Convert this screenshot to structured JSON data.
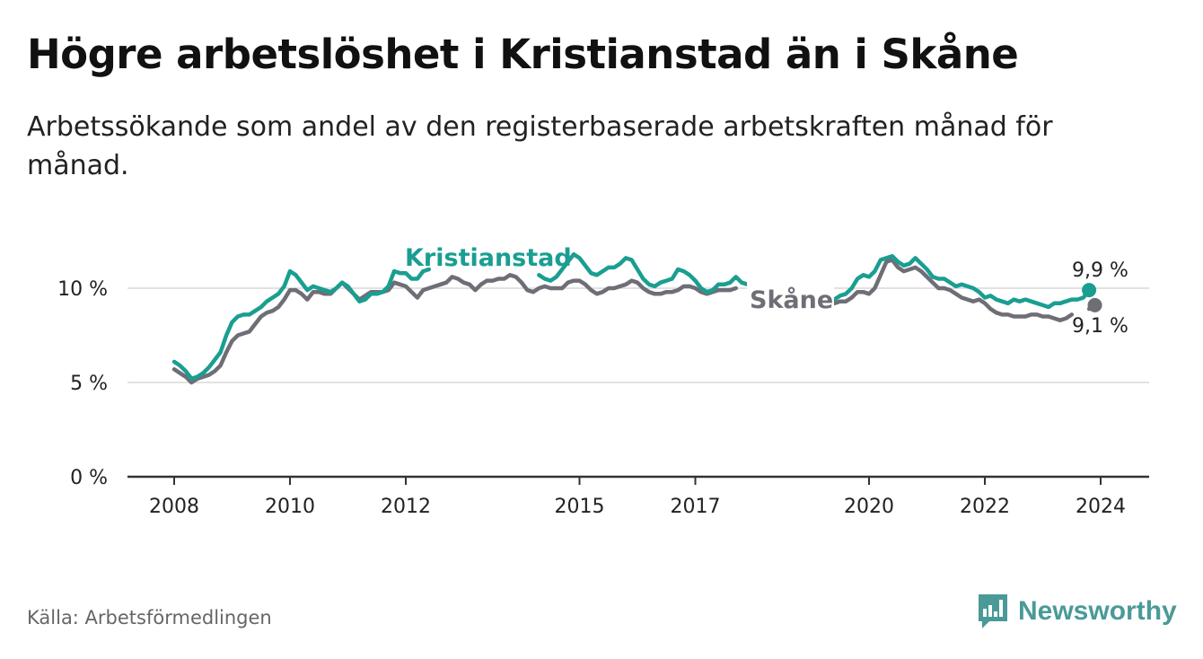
{
  "header": {
    "title": "Högre arbetslöshet i Kristianstad än i Skåne",
    "subtitle": "Arbetssökande som andel av den registerbaserade arbetskraften månad för månad."
  },
  "footer": {
    "source": "Källa: Arbetsförmedlingen",
    "brand": "Newsworthy"
  },
  "colors": {
    "kristianstad": "#1a9e92",
    "skane": "#6e6e76",
    "grid": "#d9d9d9",
    "axis": "#333333",
    "brand": "#4a9a97"
  },
  "chart_data": {
    "type": "line",
    "title": "Högre arbetslöshet i Kristianstad än i Skåne",
    "xlabel": "",
    "ylabel": "",
    "ylim": [
      0,
      12
    ],
    "xlim": [
      2008,
      2024.7
    ],
    "y_ticks": [
      0,
      5,
      10
    ],
    "y_tick_labels": [
      "0 %",
      "5 %",
      "10 %"
    ],
    "x_ticks": [
      2008,
      2010,
      2012,
      2015,
      2017,
      2020,
      2022,
      2024
    ],
    "x_tick_labels": [
      "2008",
      "2010",
      "2012",
      "2015",
      "2017",
      "2020",
      "2022",
      "2024"
    ],
    "grid": true,
    "series": [
      {
        "name": "Kristianstad",
        "end_label": "9,9 %",
        "points": [
          [
            2008.0,
            6.1
          ],
          [
            2008.1,
            5.9
          ],
          [
            2008.2,
            5.6
          ],
          [
            2008.3,
            5.2
          ],
          [
            2008.4,
            5.3
          ],
          [
            2008.5,
            5.5
          ],
          [
            2008.6,
            5.8
          ],
          [
            2008.7,
            6.2
          ],
          [
            2008.8,
            6.6
          ],
          [
            2008.9,
            7.5
          ],
          [
            2009.0,
            8.2
          ],
          [
            2009.1,
            8.5
          ],
          [
            2009.2,
            8.6
          ],
          [
            2009.3,
            8.6
          ],
          [
            2009.4,
            8.8
          ],
          [
            2009.5,
            9.0
          ],
          [
            2009.6,
            9.3
          ],
          [
            2009.7,
            9.5
          ],
          [
            2009.8,
            9.7
          ],
          [
            2009.9,
            10.1
          ],
          [
            2010.0,
            10.9
          ],
          [
            2010.1,
            10.7
          ],
          [
            2010.2,
            10.3
          ],
          [
            2010.3,
            9.9
          ],
          [
            2010.4,
            10.1
          ],
          [
            2010.5,
            10.0
          ],
          [
            2010.6,
            9.9
          ],
          [
            2010.7,
            9.8
          ],
          [
            2010.8,
            10.0
          ],
          [
            2010.9,
            10.3
          ],
          [
            2011.0,
            10.1
          ],
          [
            2011.1,
            9.7
          ],
          [
            2011.2,
            9.3
          ],
          [
            2011.3,
            9.4
          ],
          [
            2011.4,
            9.7
          ],
          [
            2011.5,
            9.7
          ],
          [
            2011.6,
            9.8
          ],
          [
            2011.7,
            10.1
          ],
          [
            2011.8,
            10.9
          ],
          [
            2011.9,
            10.8
          ],
          [
            2012.0,
            10.8
          ],
          [
            2012.1,
            10.5
          ],
          [
            2012.2,
            10.5
          ],
          [
            2012.3,
            10.9
          ],
          [
            2012.4,
            11.0
          ]
        ]
      },
      {
        "name": "Kristianstad-b",
        "points": [
          [
            2014.3,
            10.7
          ],
          [
            2014.4,
            10.5
          ],
          [
            2014.5,
            10.4
          ],
          [
            2014.6,
            10.6
          ],
          [
            2014.7,
            11.0
          ],
          [
            2014.8,
            11.4
          ],
          [
            2014.9,
            11.8
          ],
          [
            2015.0,
            11.6
          ],
          [
            2015.1,
            11.2
          ],
          [
            2015.2,
            10.8
          ],
          [
            2015.3,
            10.7
          ],
          [
            2015.4,
            10.9
          ],
          [
            2015.5,
            11.1
          ],
          [
            2015.6,
            11.1
          ],
          [
            2015.7,
            11.3
          ],
          [
            2015.8,
            11.6
          ],
          [
            2015.9,
            11.5
          ],
          [
            2016.0,
            11.0
          ],
          [
            2016.1,
            10.5
          ],
          [
            2016.2,
            10.2
          ],
          [
            2016.3,
            10.1
          ],
          [
            2016.4,
            10.3
          ],
          [
            2016.5,
            10.4
          ],
          [
            2016.6,
            10.5
          ],
          [
            2016.7,
            11.0
          ],
          [
            2016.8,
            10.9
          ],
          [
            2016.9,
            10.7
          ],
          [
            2017.0,
            10.4
          ],
          [
            2017.1,
            10.0
          ],
          [
            2017.2,
            9.8
          ],
          [
            2017.3,
            9.9
          ],
          [
            2017.4,
            10.2
          ],
          [
            2017.5,
            10.2
          ],
          [
            2017.6,
            10.3
          ],
          [
            2017.7,
            10.6
          ],
          [
            2017.8,
            10.3
          ],
          [
            2017.9,
            10.2
          ]
        ]
      },
      {
        "name": "Kristianstad-c",
        "points": [
          [
            2019.4,
            9.4
          ],
          [
            2019.5,
            9.6
          ],
          [
            2019.6,
            9.7
          ],
          [
            2019.7,
            10.0
          ],
          [
            2019.8,
            10.5
          ],
          [
            2019.9,
            10.7
          ],
          [
            2020.0,
            10.6
          ],
          [
            2020.1,
            10.9
          ],
          [
            2020.2,
            11.5
          ],
          [
            2020.3,
            11.6
          ],
          [
            2020.4,
            11.7
          ],
          [
            2020.5,
            11.4
          ],
          [
            2020.6,
            11.2
          ],
          [
            2020.7,
            11.3
          ],
          [
            2020.8,
            11.6
          ],
          [
            2020.9,
            11.3
          ],
          [
            2021.0,
            11.0
          ],
          [
            2021.1,
            10.6
          ],
          [
            2021.2,
            10.5
          ],
          [
            2021.3,
            10.5
          ],
          [
            2021.4,
            10.3
          ],
          [
            2021.5,
            10.1
          ],
          [
            2021.6,
            10.2
          ],
          [
            2021.7,
            10.1
          ],
          [
            2021.8,
            10.0
          ],
          [
            2021.9,
            9.8
          ],
          [
            2022.0,
            9.5
          ],
          [
            2022.1,
            9.6
          ],
          [
            2022.2,
            9.4
          ],
          [
            2022.3,
            9.3
          ],
          [
            2022.4,
            9.2
          ],
          [
            2022.5,
            9.4
          ],
          [
            2022.6,
            9.3
          ],
          [
            2022.7,
            9.4
          ],
          [
            2022.8,
            9.3
          ],
          [
            2022.9,
            9.2
          ],
          [
            2023.0,
            9.1
          ],
          [
            2023.1,
            9.0
          ],
          [
            2023.2,
            9.2
          ],
          [
            2023.3,
            9.2
          ],
          [
            2023.4,
            9.3
          ],
          [
            2023.5,
            9.4
          ],
          [
            2023.6,
            9.4
          ],
          [
            2023.7,
            9.5
          ],
          [
            2023.8,
            9.9
          ]
        ]
      },
      {
        "name": "Skåne",
        "end_label": "9,1 %",
        "points": [
          [
            2008.0,
            5.7
          ],
          [
            2008.1,
            5.5
          ],
          [
            2008.2,
            5.3
          ],
          [
            2008.3,
            5.0
          ],
          [
            2008.4,
            5.2
          ],
          [
            2008.5,
            5.3
          ],
          [
            2008.6,
            5.4
          ],
          [
            2008.7,
            5.6
          ],
          [
            2008.8,
            5.9
          ],
          [
            2008.9,
            6.6
          ],
          [
            2009.0,
            7.2
          ],
          [
            2009.1,
            7.5
          ],
          [
            2009.2,
            7.6
          ],
          [
            2009.3,
            7.7
          ],
          [
            2009.4,
            8.1
          ],
          [
            2009.5,
            8.5
          ],
          [
            2009.6,
            8.7
          ],
          [
            2009.7,
            8.8
          ],
          [
            2009.8,
            9.0
          ],
          [
            2009.9,
            9.4
          ],
          [
            2010.0,
            9.9
          ],
          [
            2010.1,
            9.9
          ],
          [
            2010.2,
            9.7
          ],
          [
            2010.3,
            9.4
          ],
          [
            2010.4,
            9.8
          ],
          [
            2010.5,
            9.8
          ],
          [
            2010.6,
            9.7
          ],
          [
            2010.7,
            9.7
          ],
          [
            2010.8,
            10.0
          ],
          [
            2010.9,
            10.3
          ],
          [
            2011.0,
            10.0
          ],
          [
            2011.1,
            9.7
          ],
          [
            2011.2,
            9.4
          ],
          [
            2011.3,
            9.6
          ],
          [
            2011.4,
            9.8
          ],
          [
            2011.5,
            9.8
          ],
          [
            2011.6,
            9.8
          ],
          [
            2011.7,
            9.9
          ],
          [
            2011.8,
            10.3
          ],
          [
            2011.9,
            10.2
          ],
          [
            2012.0,
            10.1
          ],
          [
            2012.1,
            9.8
          ],
          [
            2012.2,
            9.5
          ],
          [
            2012.3,
            9.9
          ],
          [
            2012.4,
            10.0
          ],
          [
            2012.5,
            10.1
          ],
          [
            2012.6,
            10.2
          ],
          [
            2012.7,
            10.3
          ],
          [
            2012.8,
            10.6
          ],
          [
            2012.9,
            10.5
          ],
          [
            2013.0,
            10.3
          ],
          [
            2013.1,
            10.2
          ],
          [
            2013.2,
            9.9
          ],
          [
            2013.3,
            10.2
          ],
          [
            2013.4,
            10.4
          ],
          [
            2013.5,
            10.4
          ],
          [
            2013.6,
            10.5
          ],
          [
            2013.7,
            10.5
          ],
          [
            2013.8,
            10.7
          ],
          [
            2013.9,
            10.6
          ],
          [
            2014.0,
            10.3
          ],
          [
            2014.1,
            9.9
          ],
          [
            2014.2,
            9.8
          ],
          [
            2014.3,
            10.0
          ],
          [
            2014.4,
            10.1
          ],
          [
            2014.5,
            10.0
          ],
          [
            2014.6,
            10.0
          ],
          [
            2014.7,
            10.0
          ],
          [
            2014.8,
            10.3
          ],
          [
            2014.9,
            10.4
          ],
          [
            2015.0,
            10.4
          ],
          [
            2015.1,
            10.2
          ],
          [
            2015.2,
            9.9
          ],
          [
            2015.3,
            9.7
          ],
          [
            2015.4,
            9.8
          ],
          [
            2015.5,
            10.0
          ],
          [
            2015.6,
            10.0
          ],
          [
            2015.7,
            10.1
          ],
          [
            2015.8,
            10.2
          ],
          [
            2015.9,
            10.4
          ],
          [
            2016.0,
            10.3
          ],
          [
            2016.1,
            10.0
          ],
          [
            2016.2,
            9.8
          ],
          [
            2016.3,
            9.7
          ],
          [
            2016.4,
            9.7
          ],
          [
            2016.5,
            9.8
          ],
          [
            2016.6,
            9.8
          ],
          [
            2016.7,
            9.9
          ],
          [
            2016.8,
            10.1
          ],
          [
            2016.9,
            10.1
          ],
          [
            2017.0,
            10.0
          ],
          [
            2017.1,
            9.8
          ],
          [
            2017.2,
            9.7
          ],
          [
            2017.3,
            9.8
          ],
          [
            2017.4,
            9.9
          ],
          [
            2017.5,
            9.9
          ],
          [
            2017.6,
            9.9
          ],
          [
            2017.7,
            10.0
          ]
        ]
      },
      {
        "name": "Skåne-b",
        "points": [
          [
            2019.4,
            9.2
          ],
          [
            2019.5,
            9.3
          ],
          [
            2019.6,
            9.3
          ],
          [
            2019.7,
            9.5
          ],
          [
            2019.8,
            9.8
          ],
          [
            2019.9,
            9.8
          ],
          [
            2020.0,
            9.7
          ],
          [
            2020.1,
            10.0
          ],
          [
            2020.2,
            10.7
          ],
          [
            2020.3,
            11.4
          ],
          [
            2020.4,
            11.5
          ],
          [
            2020.5,
            11.1
          ],
          [
            2020.6,
            10.9
          ],
          [
            2020.7,
            11.0
          ],
          [
            2020.8,
            11.1
          ],
          [
            2020.9,
            10.9
          ],
          [
            2021.0,
            10.6
          ],
          [
            2021.1,
            10.3
          ],
          [
            2021.2,
            10.0
          ],
          [
            2021.3,
            10.0
          ],
          [
            2021.4,
            9.9
          ],
          [
            2021.5,
            9.7
          ],
          [
            2021.6,
            9.5
          ],
          [
            2021.7,
            9.4
          ],
          [
            2021.8,
            9.3
          ],
          [
            2021.9,
            9.4
          ],
          [
            2022.0,
            9.2
          ],
          [
            2022.1,
            8.9
          ],
          [
            2022.2,
            8.7
          ],
          [
            2022.3,
            8.6
          ],
          [
            2022.4,
            8.6
          ],
          [
            2022.5,
            8.5
          ],
          [
            2022.6,
            8.5
          ],
          [
            2022.7,
            8.5
          ],
          [
            2022.8,
            8.6
          ],
          [
            2022.9,
            8.6
          ],
          [
            2023.0,
            8.5
          ],
          [
            2023.1,
            8.5
          ],
          [
            2023.2,
            8.4
          ],
          [
            2023.3,
            8.3
          ],
          [
            2023.4,
            8.4
          ],
          [
            2023.5,
            8.6
          ]
        ]
      },
      {
        "name": "Skåne-c",
        "points": [
          [
            2023.8,
            8.9
          ],
          [
            2023.9,
            9.1
          ]
        ]
      }
    ],
    "annotations": [
      {
        "text": "Kristianstad",
        "series": "Kristianstad"
      },
      {
        "text": "Skåne",
        "series": "Skåne"
      }
    ]
  }
}
